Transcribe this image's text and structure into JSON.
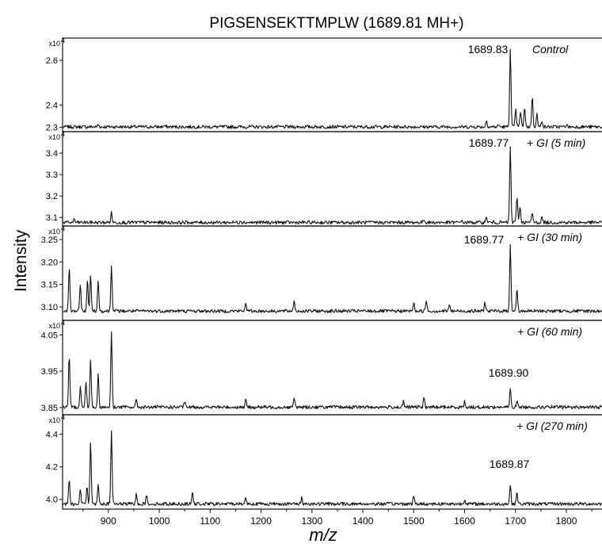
{
  "chart_data": {
    "type": "line",
    "title": "PIGSENSEKTTMPLW (1689.81 MH+)",
    "xlabel": "m/z",
    "ylabel": "Intensity",
    "xlim": [
      810,
      1870
    ],
    "x_ticks": [
      "900",
      "1000",
      "1100",
      "1200",
      "1300",
      "1400",
      "1500",
      "1600",
      "1700",
      "1800"
    ],
    "x_tick_values": [
      900,
      1000,
      1100,
      1200,
      1300,
      1400,
      1500,
      1600,
      1700,
      1800
    ],
    "y_multiplier": "x10",
    "y_multiplier_exp": "4",
    "line_color": "#111111",
    "panels": [
      {
        "condition": "Control",
        "peak_label": "1689.83",
        "ylim": [
          2.28,
          2.7
        ],
        "y_ticks": [
          "2.3",
          "2.4",
          "2.6"
        ],
        "y_tick_values": [
          2.3,
          2.4,
          2.6
        ],
        "baseline": 2.3,
        "peaks": [
          [
            1689.8,
            2.65
          ],
          [
            1700.5,
            2.38
          ],
          [
            1710,
            2.37
          ],
          [
            1718,
            2.39
          ],
          [
            1733,
            2.44
          ],
          [
            1742,
            2.36
          ],
          [
            1752,
            2.33
          ],
          [
            1643,
            2.33
          ],
          [
            1667,
            2.31
          ],
          [
            1800,
            2.31
          ],
          [
            880,
            2.31
          ],
          [
            1010,
            2.305
          ]
        ]
      },
      {
        "condition": "+ GI (5 min)",
        "peak_label": "1689.77",
        "ylim": [
          3.06,
          3.5
        ],
        "y_ticks": [
          "3.1",
          "3.2",
          "3.3",
          "3.4"
        ],
        "y_tick_values": [
          3.1,
          3.2,
          3.3,
          3.4
        ],
        "baseline": 3.075,
        "peaks": [
          [
            1689.8,
            3.43
          ],
          [
            1703,
            3.2
          ],
          [
            1709,
            3.15
          ],
          [
            1733,
            3.12
          ],
          [
            1752,
            3.1
          ],
          [
            1643,
            3.1
          ],
          [
            906,
            3.12
          ],
          [
            833,
            3.09
          ],
          [
            1160,
            3.085
          ],
          [
            1520,
            3.09
          ],
          [
            1593,
            3.085
          ]
        ]
      },
      {
        "condition": "+ GI (30 min)",
        "peak_label": "1689.77",
        "ylim": [
          3.07,
          3.28
        ],
        "y_ticks": [
          "3.10",
          "3.15",
          "3.20",
          "3.25"
        ],
        "y_tick_values": [
          3.1,
          3.15,
          3.2,
          3.25
        ],
        "baseline": 3.09,
        "peaks": [
          [
            823,
            3.187
          ],
          [
            845,
            3.15
          ],
          [
            859,
            3.16
          ],
          [
            865,
            3.17
          ],
          [
            880,
            3.16
          ],
          [
            906,
            3.193
          ],
          [
            1689.8,
            3.239
          ],
          [
            1703,
            3.14
          ],
          [
            1265,
            3.115
          ],
          [
            1170,
            3.11
          ],
          [
            1500,
            3.11
          ],
          [
            1525,
            3.115
          ],
          [
            1570,
            3.105
          ],
          [
            1640,
            3.11
          ]
        ]
      },
      {
        "condition": "+ GI (60 min)",
        "peak_label": "1689.90",
        "ylim": [
          3.83,
          4.09
        ],
        "y_ticks": [
          "3.85",
          "3.95",
          "4.05"
        ],
        "y_tick_values": [
          3.85,
          3.95,
          4.05
        ],
        "baseline": 3.85,
        "peaks": [
          [
            823,
            3.99
          ],
          [
            845,
            3.91
          ],
          [
            856,
            3.92
          ],
          [
            865,
            3.985
          ],
          [
            880,
            3.94
          ],
          [
            906,
            4.06
          ],
          [
            955,
            3.87
          ],
          [
            1050,
            3.865
          ],
          [
            1170,
            3.87
          ],
          [
            1265,
            3.875
          ],
          [
            1480,
            3.865
          ],
          [
            1520,
            3.875
          ],
          [
            1600,
            3.865
          ],
          [
            1689.8,
            3.9
          ],
          [
            1703,
            3.87
          ]
        ]
      },
      {
        "condition": "+ GI (270 min)",
        "peak_label": "1689.87",
        "ylim": [
          3.94,
          4.52
        ],
        "y_ticks": [
          "4.0",
          "4.2",
          "4.4"
        ],
        "y_tick_values": [
          4.0,
          4.2,
          4.4
        ],
        "baseline": 3.97,
        "peaks": [
          [
            823,
            4.13
          ],
          [
            845,
            4.06
          ],
          [
            858,
            4.08
          ],
          [
            865,
            4.36
          ],
          [
            880,
            4.1
          ],
          [
            906,
            4.42
          ],
          [
            955,
            4.03
          ],
          [
            975,
            4.02
          ],
          [
            1065,
            4.04
          ],
          [
            1170,
            4.01
          ],
          [
            1280,
            4.01
          ],
          [
            1500,
            4.02
          ],
          [
            1600,
            4.0
          ],
          [
            1689.8,
            4.09
          ],
          [
            1703,
            4.04
          ]
        ]
      }
    ]
  }
}
